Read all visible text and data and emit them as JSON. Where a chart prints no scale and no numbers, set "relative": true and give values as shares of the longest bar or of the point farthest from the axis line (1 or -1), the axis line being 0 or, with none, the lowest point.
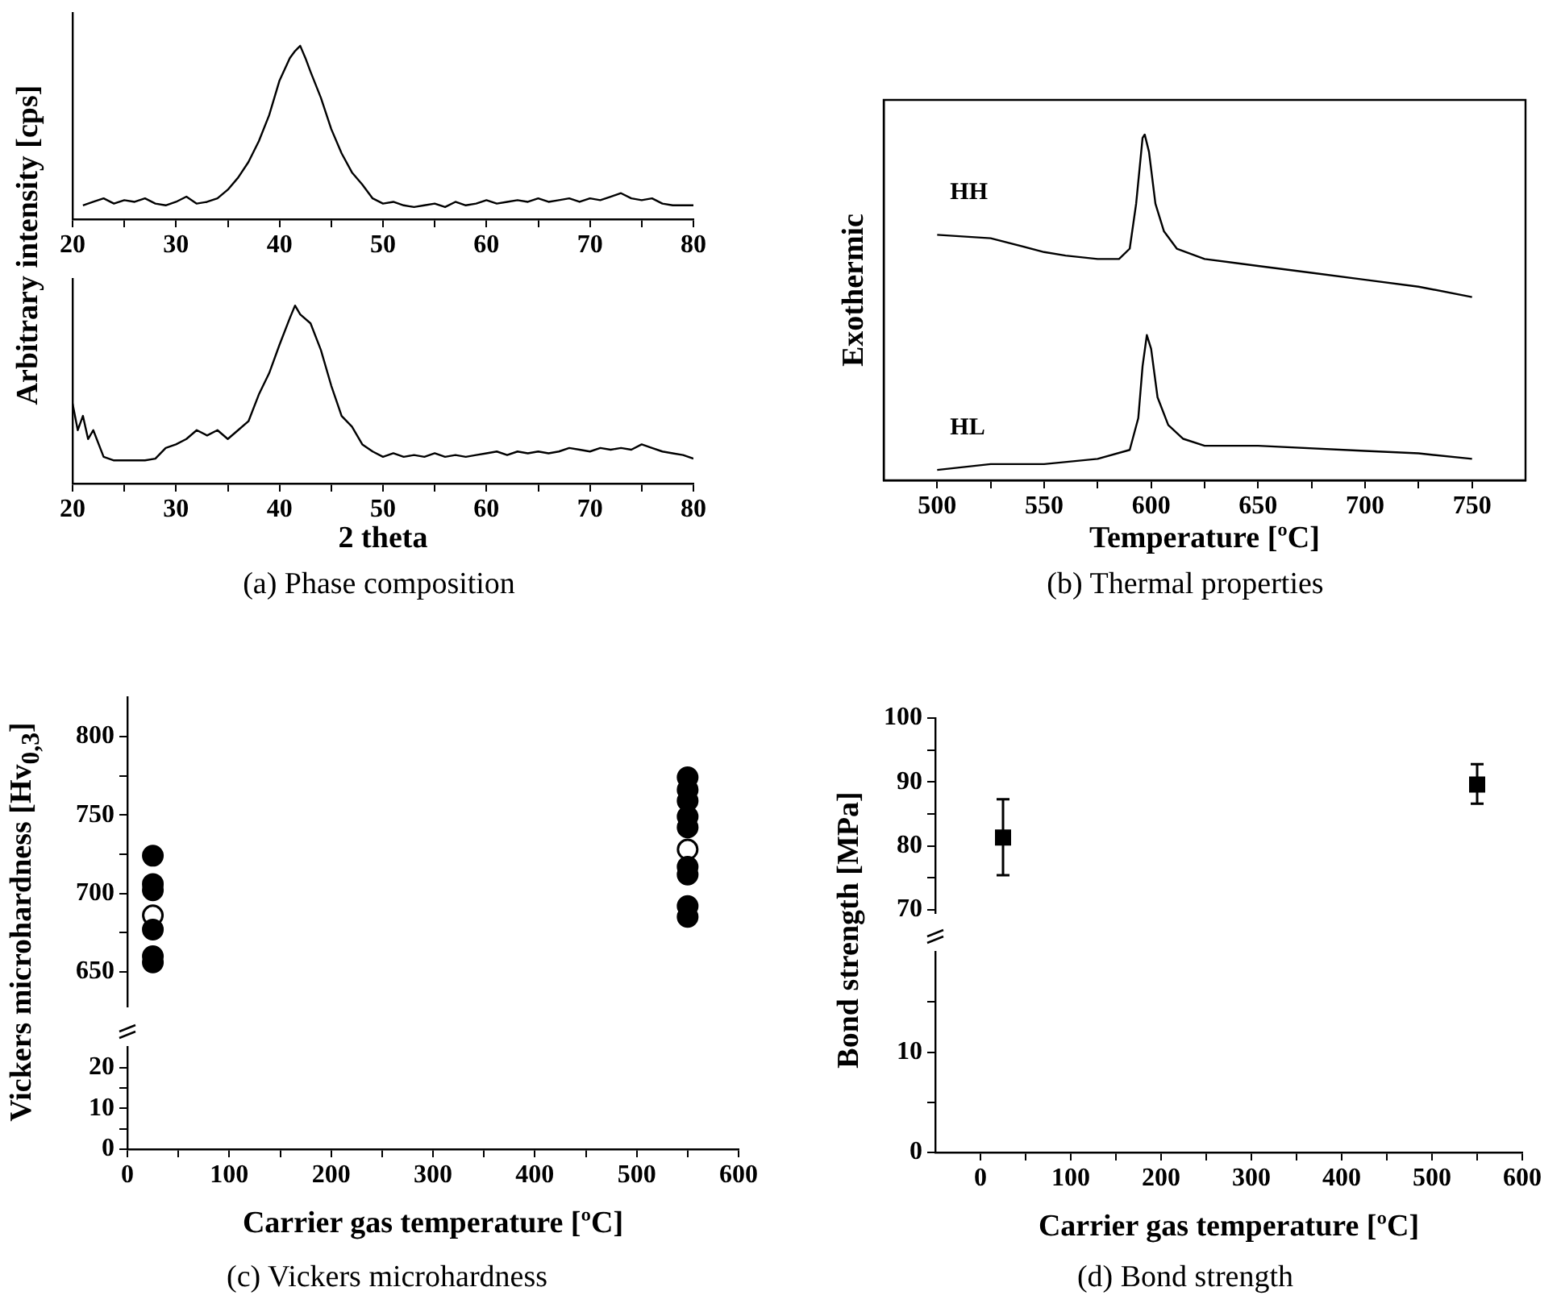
{
  "chart_data": [
    {
      "type": "line",
      "relative": true,
      "ylabel": "Arbitrary intensity [cps]",
      "xlim": [
        20,
        80
      ],
      "xticks": [
        20,
        {
          "value": 25,
          "label": null
        },
        30,
        {
          "value": 35,
          "label": null
        },
        40,
        {
          "value": 45,
          "label": null
        },
        50,
        {
          "value": 55,
          "label": null
        },
        60,
        {
          "value": 65,
          "label": null
        },
        70,
        {
          "value": 75,
          "label": null
        },
        80
      ],
      "tick_labels": "x",
      "grid": false,
      "legend": false,
      "line_style": "solid",
      "series": [
        {
          "color": "#000000",
          "x": [
            21,
            22,
            23,
            24,
            25,
            26,
            27,
            28,
            29,
            30,
            31,
            32,
            33,
            34,
            35,
            36,
            37,
            38,
            39,
            40,
            41,
            41.5,
            42,
            42.5,
            43,
            44,
            45,
            46,
            47,
            48,
            49,
            50,
            51,
            52,
            53,
            54,
            55,
            56,
            57,
            58,
            59,
            60,
            61,
            62,
            63,
            64,
            65,
            66,
            67,
            68,
            69,
            70,
            71,
            72,
            73,
            74,
            75,
            76,
            77,
            78,
            79,
            80
          ],
          "values": [
            0.08,
            0.1,
            0.12,
            0.09,
            0.11,
            0.1,
            0.12,
            0.09,
            0.08,
            0.1,
            0.13,
            0.09,
            0.1,
            0.12,
            0.17,
            0.24,
            0.33,
            0.45,
            0.6,
            0.8,
            0.93,
            0.97,
            1,
            0.93,
            0.85,
            0.7,
            0.52,
            0.38,
            0.27,
            0.2,
            0.12,
            0.09,
            0.1,
            0.08,
            0.07,
            0.08,
            0.09,
            0.07,
            0.1,
            0.08,
            0.09,
            0.11,
            0.09,
            0.1,
            0.11,
            0.1,
            0.12,
            0.1,
            0.11,
            0.12,
            0.1,
            0.12,
            0.11,
            0.13,
            0.15,
            0.12,
            0.11,
            0.12,
            0.09,
            0.08,
            0.08,
            0.08
          ]
        }
      ]
    },
    {
      "type": "line",
      "relative": true,
      "xlabel": "2 theta",
      "annotations": [
        "(a) Phase composition"
      ],
      "xlim": [
        20,
        80
      ],
      "xticks": [
        20,
        {
          "value": 25,
          "label": null
        },
        30,
        {
          "value": 35,
          "label": null
        },
        40,
        {
          "value": 45,
          "label": null
        },
        50,
        {
          "value": 55,
          "label": null
        },
        60,
        {
          "value": 65,
          "label": null
        },
        70,
        {
          "value": 75,
          "label": null
        },
        80
      ],
      "tick_labels": "x",
      "grid": false,
      "legend": false,
      "line_style": "solid",
      "series": [
        {
          "color": "#000000",
          "x": [
            20,
            20.5,
            21,
            21.5,
            22,
            23,
            24,
            25,
            26,
            27,
            28,
            29,
            30,
            31,
            32,
            33,
            34,
            35,
            36,
            37,
            38,
            39,
            40,
            41,
            41.5,
            42,
            43,
            44,
            45,
            46,
            47,
            48,
            49,
            50,
            51,
            52,
            53,
            54,
            55,
            56,
            57,
            58,
            59,
            60,
            61,
            62,
            63,
            64,
            65,
            66,
            67,
            68,
            69,
            70,
            71,
            72,
            73,
            74,
            75,
            76,
            77,
            78,
            79,
            80
          ],
          "values": [
            0.45,
            0.3,
            0.38,
            0.25,
            0.3,
            0.15,
            0.13,
            0.13,
            0.13,
            0.13,
            0.14,
            0.2,
            0.22,
            0.25,
            0.3,
            0.27,
            0.3,
            0.25,
            0.3,
            0.35,
            0.5,
            0.62,
            0.78,
            0.93,
            1,
            0.95,
            0.9,
            0.75,
            0.55,
            0.38,
            0.32,
            0.22,
            0.18,
            0.15,
            0.17,
            0.15,
            0.16,
            0.15,
            0.17,
            0.15,
            0.16,
            0.15,
            0.16,
            0.17,
            0.18,
            0.16,
            0.18,
            0.17,
            0.18,
            0.17,
            0.18,
            0.2,
            0.19,
            0.18,
            0.2,
            0.19,
            0.2,
            0.19,
            0.22,
            0.2,
            0.18,
            0.17,
            0.16,
            0.14
          ]
        }
      ]
    },
    {
      "type": "line",
      "relative": true,
      "xlabel": "Temperature [ºC]",
      "ylabel": "Exothermic",
      "annotations": [
        "(b) Thermal properties"
      ],
      "xlim": [
        475,
        775
      ],
      "xticks": [
        500,
        {
          "value": 525,
          "label": null
        },
        550,
        {
          "value": 575,
          "label": null
        },
        600,
        {
          "value": 625,
          "label": null
        },
        650,
        {
          "value": 675,
          "label": null
        },
        700,
        {
          "value": 725,
          "label": null
        },
        750
      ],
      "tick_labels": "x",
      "grid": false,
      "legend": false,
      "line_style": "solid",
      "series": [
        {
          "name": "HH",
          "color": "#000000",
          "x": [
            500,
            525,
            550,
            560,
            575,
            585,
            590,
            593,
            596,
            597,
            599,
            602,
            606,
            612,
            625,
            650,
            675,
            700,
            725,
            750
          ],
          "values": [
            0.71,
            0.7,
            0.66,
            0.65,
            0.64,
            0.64,
            0.67,
            0.8,
            0.99,
            1,
            0.95,
            0.8,
            0.72,
            0.67,
            0.64,
            0.62,
            0.6,
            0.58,
            0.56,
            0.53
          ]
        },
        {
          "name": "HL",
          "color": "#000000",
          "x": [
            500,
            525,
            550,
            575,
            590,
            594,
            596,
            598,
            600,
            603,
            608,
            615,
            625,
            650,
            700,
            725,
            750
          ],
          "values": [
            0.03,
            0.047,
            0.047,
            0.062,
            0.088,
            0.18,
            0.33,
            0.42,
            0.38,
            0.24,
            0.16,
            0.12,
            0.1,
            0.1,
            0.085,
            0.078,
            0.062
          ]
        }
      ]
    },
    {
      "type": "scatter",
      "ylabel": "Vickers microhardness [Hv$_{0,3}$]",
      "xlim": [
        0,
        600
      ],
      "ylim": [
        628,
        825
      ],
      "yticks": [
        650,
        {
          "value": 675,
          "label": null
        },
        700,
        {
          "value": 725,
          "label": null
        },
        750,
        {
          "value": 775,
          "label": null
        },
        800
      ],
      "tick_labels": "y",
      "grid": false,
      "legend": false,
      "marker": "circle",
      "series": [
        {
          "color": "#000000",
          "x": [
            25,
            25,
            25,
            25,
            25,
            25,
            550,
            550,
            550,
            550,
            550,
            550,
            550,
            550,
            550
          ],
          "values": [
            724,
            706,
            702,
            677,
            660,
            656,
            774,
            766,
            759,
            749,
            742,
            717,
            712,
            692,
            685
          ]
        },
        {
          "color": "#ffffff",
          "x": [
            25,
            550
          ],
          "values": [
            686,
            728
          ]
        }
      ]
    },
    {
      "type": "scatter",
      "xlabel": "Carrier gas temperature [ºC]",
      "annotations": [
        "(c) Vickers microhardness"
      ],
      "xlim": [
        0,
        600
      ],
      "xticks": [
        0,
        {
          "value": 50,
          "label": null
        },
        100,
        {
          "value": 150,
          "label": null
        },
        200,
        {
          "value": 250,
          "label": null
        },
        300,
        {
          "value": 350,
          "label": null
        },
        400,
        {
          "value": 450,
          "label": null
        },
        500,
        {
          "value": 550,
          "label": null
        },
        600
      ],
      "ylim": [
        0,
        25
      ],
      "yticks": [
        0,
        {
          "value": 5,
          "label": null
        },
        10,
        {
          "value": 15,
          "label": null
        },
        20
      ],
      "grid": false,
      "legend": false
    },
    {
      "type": "scatter",
      "ylabel": "Bond strength [MPa]",
      "xlim": [
        -50,
        600
      ],
      "ylim": [
        69.5,
        100
      ],
      "yticks": [
        70,
        {
          "value": 75,
          "label": null
        },
        80,
        {
          "value": 85,
          "label": null
        },
        90,
        {
          "value": 95,
          "label": null
        },
        100
      ],
      "tick_labels": "y",
      "grid": false,
      "legend": false,
      "marker": "square",
      "series": [
        {
          "color": "#000000",
          "x": [
            25,
            550
          ],
          "values": [
            81.3,
            89.6
          ],
          "errors": [
            [
              75.4,
              87.3
            ],
            [
              86.6,
              92.8
            ]
          ]
        }
      ]
    },
    {
      "type": "scatter",
      "xlabel": "Carrier gas temperature [ºC]",
      "annotations": [
        "(d) Bond strength"
      ],
      "xlim": [
        -50,
        600
      ],
      "xticks": [
        0,
        {
          "value": 50,
          "label": null
        },
        100,
        {
          "value": 150,
          "label": null
        },
        200,
        {
          "value": 250,
          "label": null
        },
        300,
        {
          "value": 350,
          "label": null
        },
        400,
        {
          "value": 450,
          "label": null
        },
        500,
        {
          "value": 550,
          "label": null
        },
        600
      ],
      "ylim": [
        0,
        20
      ],
      "yticks": [
        0,
        {
          "value": 5,
          "label": null
        },
        10,
        {
          "value": 15,
          "label": null
        }
      ],
      "grid": false,
      "legend": false
    }
  ]
}
